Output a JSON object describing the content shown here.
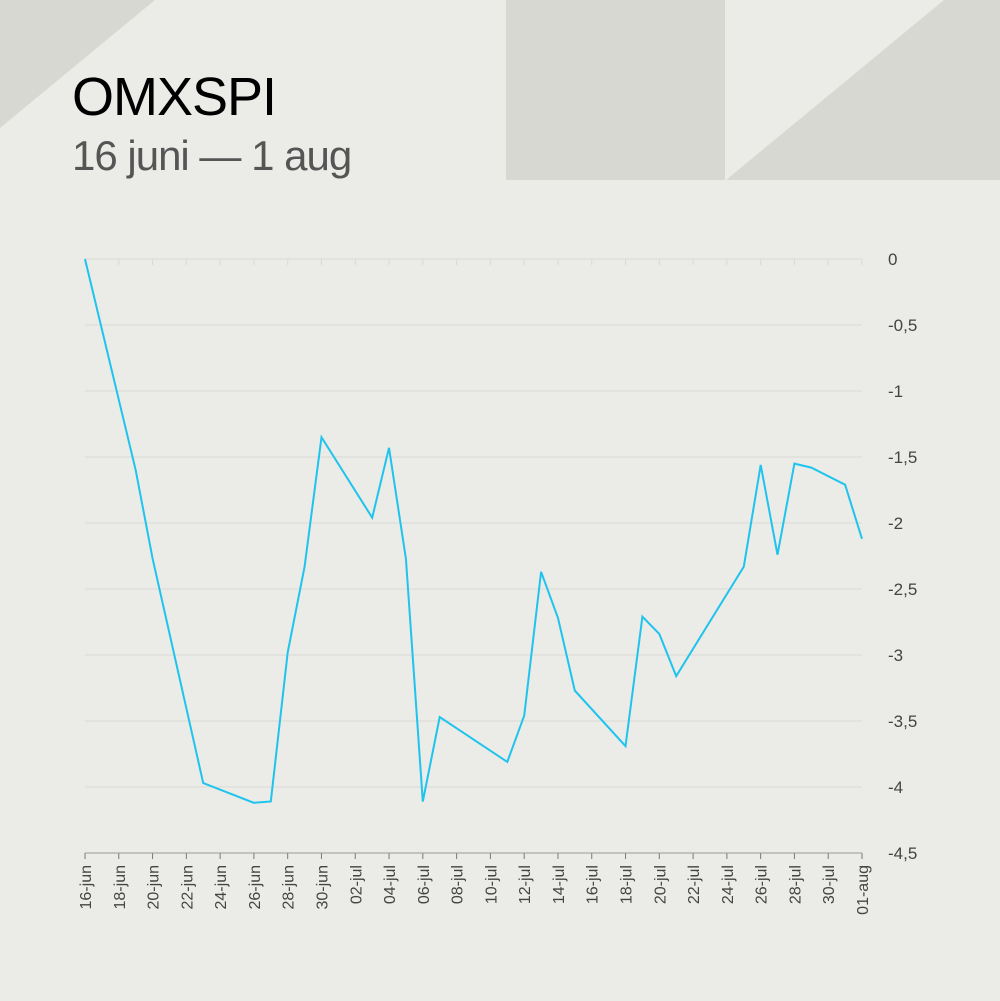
{
  "header": {
    "title": "OMXSPI",
    "subtitle": "16 juni — 1 aug"
  },
  "colors": {
    "background": "#ebebe7",
    "decor": "#d8d8d3",
    "line": "#1ec4ee",
    "grid": "#d9d9d5"
  },
  "chart_data": {
    "type": "line",
    "title": "OMXSPI",
    "subtitle": "16 juni — 1 aug",
    "xlabel": "",
    "ylabel": "",
    "ylim": [
      -4.5,
      0
    ],
    "yaxis_position": "right",
    "grid": true,
    "y_ticks": [
      "0",
      "-0,5",
      "-1",
      "-1,5",
      "-2",
      "-2,5",
      "-3",
      "-3,5",
      "-4",
      "-4,5"
    ],
    "x_ticks": [
      "16-jun",
      "18-jun",
      "20-jun",
      "22-jun",
      "24-jun",
      "26-jun",
      "28-jun",
      "30-jun",
      "02-jul",
      "04-jul",
      "06-jul",
      "08-jul",
      "10-jul",
      "12-jul",
      "14-jul",
      "16-jul",
      "18-jul",
      "20-jul",
      "22-jul",
      "24-jul",
      "26-jul",
      "28-jul",
      "30-jul",
      "01-aug"
    ],
    "series": [
      {
        "x": [
          "2025-06-16",
          "2025-06-19",
          "2025-06-20",
          "2025-06-23",
          "2025-06-26",
          "2025-06-27",
          "2025-06-28",
          "2025-06-29",
          "2025-06-30",
          "2025-07-03",
          "2025-07-04",
          "2025-07-05",
          "2025-07-06",
          "2025-07-07",
          "2025-07-11",
          "2025-07-12",
          "2025-07-13",
          "2025-07-14",
          "2025-07-15",
          "2025-07-18",
          "2025-07-19",
          "2025-07-20",
          "2025-07-21",
          "2025-07-25",
          "2025-07-26",
          "2025-07-27",
          "2025-07-28",
          "2025-07-29",
          "2025-07-31",
          "2025-08-01"
        ],
        "values": [
          0,
          -1.6,
          -2.27,
          -3.97,
          -4.12,
          -4.11,
          -2.98,
          -2.33,
          -1.35,
          -1.96,
          -1.43,
          -2.27,
          -4.11,
          -3.47,
          -3.81,
          -3.46,
          -2.37,
          -2.72,
          -3.27,
          -3.69,
          -2.71,
          -2.84,
          -3.16,
          -2.33,
          -1.56,
          -2.24,
          -1.55,
          -1.58,
          -1.71,
          -2.12
        ]
      }
    ]
  }
}
